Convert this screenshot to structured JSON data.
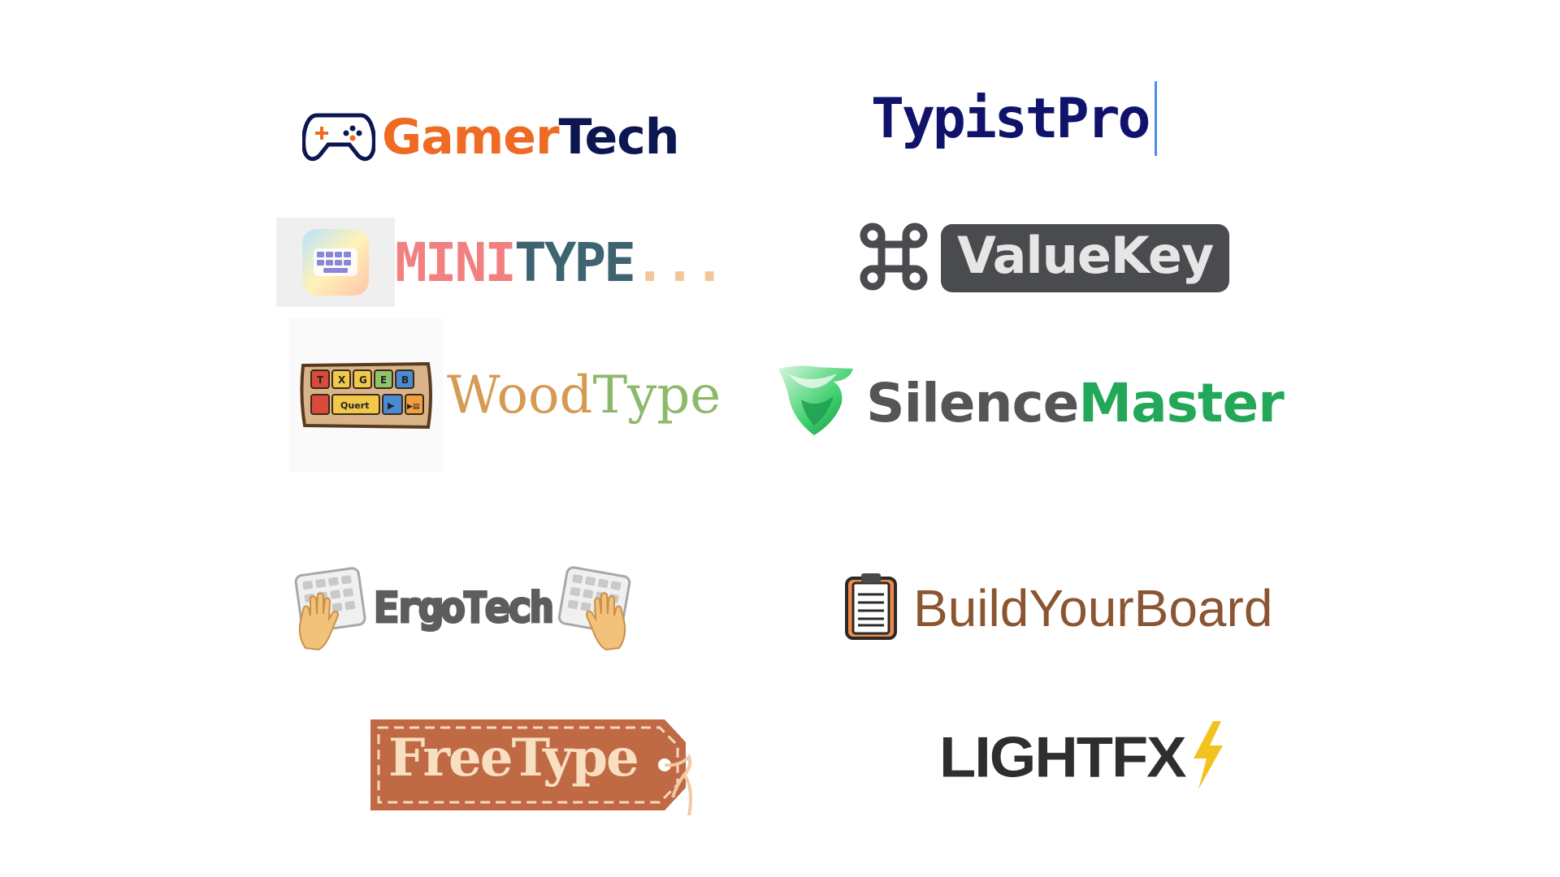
{
  "colors": {
    "gamer_orange": "#ef6a23",
    "gamer_navy": "#0c1650",
    "typist_navy": "#10136b",
    "cursor_blue": "#4a8fe0",
    "mini_pink": "#f28080",
    "mini_teal": "#3d6470",
    "mini_dots": "#f5c59a",
    "value_key_bg": "#4a4b4e",
    "value_key_text": "#e6e6e6",
    "wood_gold": "#d59b52",
    "wood_green": "#8db96a",
    "silence_gray": "#555555",
    "silence_green": "#23a85a",
    "ergo_gray": "#5d5d5d",
    "build_brown": "#8a5530",
    "free_tag": "#bf6a45",
    "free_text": "#f8dfc0",
    "light_dark": "#2e2e2e",
    "light_bolt": "#f4c21c"
  },
  "logos": {
    "gamertech": {
      "part1": "Gamer",
      "part2": "Tech",
      "icon": "gamepad-icon"
    },
    "typistpro": {
      "text": "TypistPro",
      "icon": "text-cursor-icon"
    },
    "minitype": {
      "part1": "MINI",
      "part2": "TYPE",
      "dots": "...",
      "icon": "keyboard-app-icon"
    },
    "valuekey": {
      "text": "ValueKey",
      "icon": "command-key-icon"
    },
    "woodtype": {
      "part1": "Wood",
      "part2": "Type",
      "icon": "wooden-keyboard-icon",
      "keys_row1": [
        "T",
        "X",
        "G",
        "E",
        "B"
      ],
      "keys_row2": [
        "Quert",
        "▶",
        "▶▤"
      ]
    },
    "silencemaster": {
      "part1": "Silence",
      "part2": "Master",
      "icon": "green-shield-icon"
    },
    "ergotech": {
      "text": "ErgoTech",
      "icon": "keyboard-hand-icon"
    },
    "buildyourboard": {
      "text": "BuildYourBoard",
      "icon": "clipboard-icon"
    },
    "freetype": {
      "text": "FreeType",
      "icon": "tag-icon"
    },
    "lightfx": {
      "text": "LIGHTFX",
      "icon": "lightning-bolt-icon"
    }
  }
}
